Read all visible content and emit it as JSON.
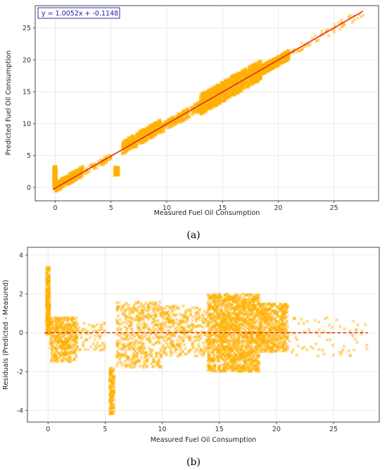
{
  "chart_data": [
    {
      "type": "scatter",
      "panel_label": "(a)",
      "xlabel": "Measured Fuel Oil Consumption",
      "ylabel": "Predicted Fuel Oil Consumption",
      "xlim": [
        -1.8,
        29
      ],
      "ylim": [
        -2.1,
        28.5
      ],
      "xticks": [
        0,
        5,
        10,
        15,
        20,
        25
      ],
      "yticks": [
        0,
        5,
        10,
        15,
        20,
        25
      ],
      "grid": true,
      "marker_color": "#FFB000",
      "line_color": "#E8281C",
      "fit_equation": "y = 1.0052x + -0.1148",
      "fit": {
        "slope": 1.0052,
        "intercept": -0.1148,
        "x_range": [
          -0.2,
          27.6
        ]
      },
      "point_clusters": [
        {
          "x": [
            -0.15,
            0.1
          ],
          "y": [
            -0.2,
            3.3
          ],
          "n": 220,
          "relative_to_fit": false
        },
        {
          "x": [
            0,
            2.5
          ],
          "y": [
            -0.6,
            1.0
          ],
          "n": 420,
          "relative_to_fit": true
        },
        {
          "x": [
            2.5,
            5
          ],
          "y": [
            -0.6,
            0.4
          ],
          "n": 70,
          "relative_to_fit": true
        },
        {
          "x": [
            5.3,
            5.7
          ],
          "y": [
            1.9,
            3.3
          ],
          "n": 80,
          "relative_to_fit": false
        },
        {
          "x": [
            6,
            9.5
          ],
          "y": [
            -0.8,
            1.3
          ],
          "n": 480,
          "relative_to_fit": true
        },
        {
          "x": [
            9.5,
            13
          ],
          "y": [
            -1.0,
            0.6
          ],
          "n": 260,
          "relative_to_fit": true
        },
        {
          "x": [
            13,
            18.5
          ],
          "y": [
            -1.6,
            1.6
          ],
          "n": 1300,
          "relative_to_fit": true
        },
        {
          "x": [
            18.5,
            21
          ],
          "y": [
            -0.9,
            0.6
          ],
          "n": 520,
          "relative_to_fit": true
        },
        {
          "x": [
            21,
            27.8
          ],
          "y": [
            -0.8,
            0.6
          ],
          "n": 60,
          "relative_to_fit": true
        }
      ]
    },
    {
      "type": "scatter",
      "panel_label": "(b)",
      "xlabel": "Measured Fuel Oil Consumption",
      "ylabel": "Residuals (Predicted - Measured)",
      "xlim": [
        -1.8,
        29
      ],
      "ylim": [
        -4.6,
        4.4
      ],
      "xticks": [
        0,
        5,
        10,
        15,
        20,
        25
      ],
      "yticks": [
        -4,
        -2,
        0,
        2,
        4
      ],
      "grid": true,
      "marker_color": "#FFB000",
      "zero_line": {
        "y": 0,
        "color": "#E8281C",
        "style": "dashed"
      },
      "point_clusters": [
        {
          "x": [
            -0.15,
            0.15
          ],
          "y": [
            -0.1,
            3.4
          ],
          "n": 260
        },
        {
          "x": [
            0.2,
            2.5
          ],
          "y": [
            -1.5,
            0.8
          ],
          "n": 420
        },
        {
          "x": [
            2.5,
            5
          ],
          "y": [
            -0.9,
            0.5
          ],
          "n": 70
        },
        {
          "x": [
            5.4,
            5.8
          ],
          "y": [
            -4.2,
            -1.8
          ],
          "n": 140
        },
        {
          "x": [
            6,
            10
          ],
          "y": [
            -1.8,
            1.6
          ],
          "n": 480
        },
        {
          "x": [
            10,
            14
          ],
          "y": [
            -1.2,
            1.4
          ],
          "n": 330
        },
        {
          "x": [
            14,
            18.5
          ],
          "y": [
            -2.0,
            2.0
          ],
          "n": 1500
        },
        {
          "x": [
            18.5,
            21
          ],
          "y": [
            -1.0,
            1.5
          ],
          "n": 520
        },
        {
          "x": [
            21,
            28
          ],
          "y": [
            -1.2,
            0.8
          ],
          "n": 70
        }
      ]
    }
  ]
}
